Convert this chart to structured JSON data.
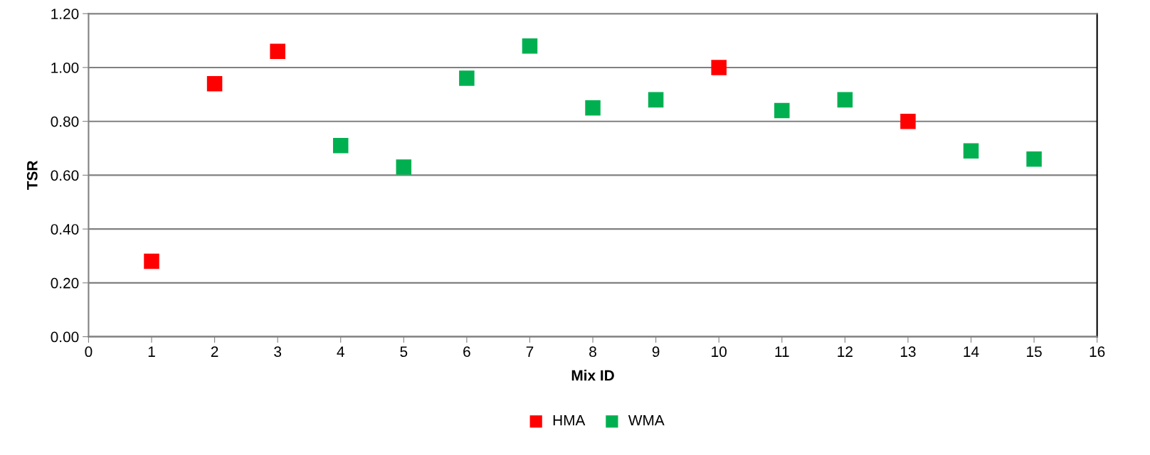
{
  "chart_data": {
    "type": "scatter",
    "xlabel": "Mix ID",
    "ylabel": "TSR",
    "series": [
      {
        "name": "HMA",
        "color": "#ff0000",
        "x": [
          1,
          2,
          3,
          10,
          13
        ],
        "values": [
          0.28,
          0.94,
          1.06,
          1.0,
          0.8
        ]
      },
      {
        "name": "WMA",
        "color": "#00b050",
        "x": [
          4,
          5,
          6,
          7,
          8,
          9,
          11,
          12,
          14,
          15
        ],
        "values": [
          0.71,
          0.63,
          0.96,
          1.08,
          0.85,
          0.88,
          0.84,
          0.88,
          0.69,
          0.66
        ]
      }
    ],
    "xlim": [
      0,
      16
    ],
    "xticks": [
      0,
      1,
      2,
      3,
      4,
      5,
      6,
      7,
      8,
      9,
      10,
      11,
      12,
      13,
      14,
      15,
      16
    ],
    "ylim": [
      0,
      1.2
    ],
    "yticks": [
      {
        "value": 0,
        "label": "0.00"
      },
      {
        "value": 0.2,
        "label": "0.20"
      },
      {
        "value": 0.4,
        "label": "0.40"
      },
      {
        "value": 0.6,
        "label": "0.60"
      },
      {
        "value": 0.8,
        "label": "0.80"
      },
      {
        "value": 1.0,
        "label": "1.00"
      },
      {
        "value": 1.2,
        "label": "1.20"
      }
    ],
    "grid": "y",
    "legend": "bottom",
    "marker": "square"
  }
}
